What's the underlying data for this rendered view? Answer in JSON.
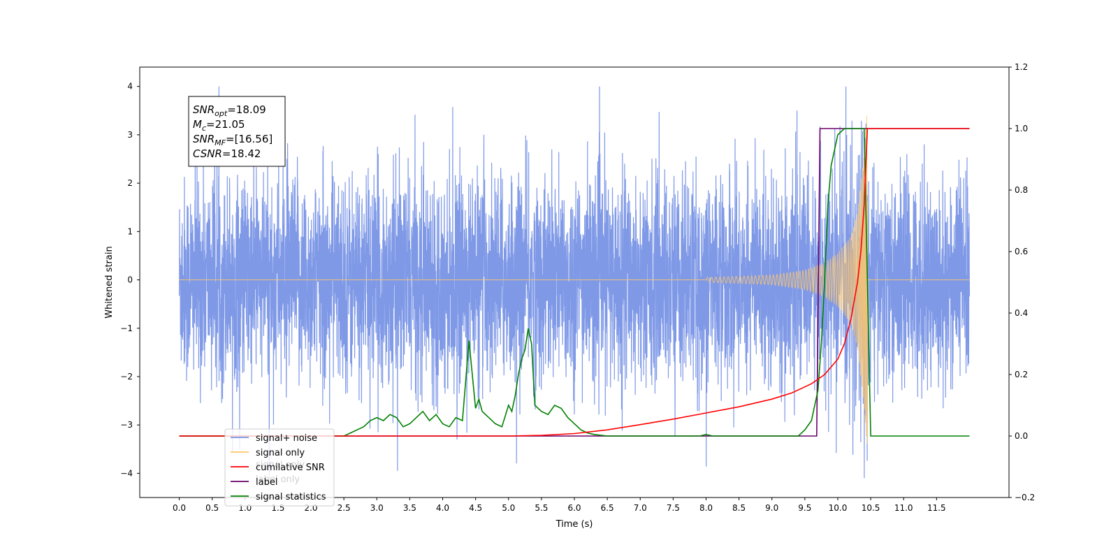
{
  "chart_data": {
    "type": "line",
    "xlabel": "Time (s)",
    "ylabel_left": "Whitened strain",
    "ylabel_right": "",
    "xlim": [
      -0.6,
      12.6
    ],
    "ylim_left": [
      -4.5,
      4.4
    ],
    "ylim_right": [
      -0.2,
      1.2
    ],
    "x_ticks": [
      0.0,
      0.5,
      1.0,
      1.5,
      2.0,
      2.5,
      3.0,
      3.5,
      4.0,
      4.5,
      5.0,
      5.5,
      6.0,
      6.5,
      7.0,
      7.5,
      8.0,
      8.5,
      9.0,
      9.5,
      10.0,
      10.5,
      11.0,
      11.5
    ],
    "x_tick_labels": [
      "0.0",
      "0.5",
      "1.0",
      "1.5",
      "2.0",
      "2.5",
      "3.0",
      "3.5",
      "4.0",
      "4.5",
      "5.0",
      "5.5",
      "6.0",
      "6.5",
      "7.0",
      "7.5",
      "8.0",
      "8.5",
      "9.0",
      "9.5",
      "10.0",
      "10.5",
      "11.0",
      "11.5"
    ],
    "y_ticks_left": [
      4,
      3,
      2,
      1,
      0,
      -1,
      -2,
      -3,
      -4
    ],
    "y_tick_labels_left": [
      "4",
      "3",
      "2",
      "1",
      "0",
      "−1",
      "−2",
      "−3",
      "−4"
    ],
    "y_ticks_right": [
      1.2,
      1.0,
      0.8,
      0.6,
      0.4,
      0.2,
      0.0,
      -0.2
    ],
    "y_tick_labels_right": [
      "1.2",
      "1.0",
      "0.8",
      "0.6",
      "0.4",
      "0.2",
      "0.0",
      "−0.2"
    ],
    "annotation_box": {
      "lines": [
        {
          "var": "SNR",
          "sub": "opt",
          "value": "=18.09"
        },
        {
          "var": "M",
          "sub": "c",
          "value": "=21.05"
        },
        {
          "var": "SNR",
          "sub": "MF",
          "value": "=[16.56]"
        },
        {
          "var": "CSNR",
          "sub": "",
          "value": "=18.42"
        }
      ]
    },
    "legend": {
      "placement": "lower-left",
      "entries": [
        {
          "label": "signal+ noise",
          "color": "#7893e6"
        },
        {
          "label": "signal only",
          "color": "#ffc76a"
        },
        {
          "label": "cumilative SNR",
          "color": "#ff0000"
        },
        {
          "label": "label",
          "color": "#6a006a"
        },
        {
          "label": "signal statistics",
          "color": "#008000"
        }
      ],
      "hidden_text": [
        "signal only",
        "label only"
      ]
    },
    "series": [
      {
        "name": "signal+ noise",
        "axis": "left",
        "color": "#7893e6",
        "t_range": [
          0.0,
          12.0
        ],
        "noise_sigma": 1.05,
        "peak_max": 4.0,
        "peak_min": -4.1
      },
      {
        "name": "signal only",
        "axis": "left",
        "color": "#ffc76a",
        "t_range": [
          0.0,
          12.0
        ],
        "envelope_t": [
          8.0,
          9.0,
          9.5,
          9.8,
          10.0,
          10.2,
          10.3,
          10.4,
          10.45
        ],
        "envelope_amp": [
          0.05,
          0.1,
          0.2,
          0.35,
          0.55,
          0.9,
          1.4,
          2.6,
          3.6
        ],
        "merger_t": 10.45
      },
      {
        "name": "cumilative SNR",
        "axis": "right",
        "color": "#ff0000",
        "x": [
          0.0,
          5.0,
          5.5,
          6.0,
          6.5,
          7.0,
          7.5,
          8.0,
          8.5,
          9.0,
          9.3,
          9.6,
          9.8,
          10.0,
          10.1,
          10.2,
          10.3,
          10.35,
          10.4,
          10.45,
          11.0,
          12.0
        ],
        "y": [
          0.0,
          0.0,
          0.002,
          0.008,
          0.02,
          0.037,
          0.055,
          0.075,
          0.095,
          0.12,
          0.14,
          0.17,
          0.2,
          0.25,
          0.3,
          0.38,
          0.5,
          0.6,
          0.75,
          1.0,
          1.0,
          1.0
        ]
      },
      {
        "name": "label",
        "axis": "right",
        "color": "#6a006a",
        "x": [
          0.0,
          9.68,
          9.73,
          10.42,
          10.45,
          12.0
        ],
        "y": [
          0.0,
          0.0,
          1.0,
          1.0,
          1.0,
          1.0
        ]
      },
      {
        "name": "signal statistics",
        "axis": "right",
        "color": "#008000",
        "x": [
          0.0,
          2.5,
          2.6,
          2.7,
          2.8,
          2.9,
          3.0,
          3.1,
          3.2,
          3.3,
          3.4,
          3.5,
          3.6,
          3.7,
          3.8,
          3.9,
          4.0,
          4.1,
          4.2,
          4.3,
          4.4,
          4.45,
          4.5,
          4.55,
          4.6,
          4.7,
          4.8,
          4.9,
          5.0,
          5.05,
          5.1,
          5.15,
          5.2,
          5.25,
          5.3,
          5.35,
          5.4,
          5.5,
          5.6,
          5.7,
          5.8,
          5.9,
          6.0,
          6.1,
          6.2,
          6.3,
          6.5,
          7.0,
          7.9,
          8.0,
          8.1,
          9.4,
          9.5,
          9.6,
          9.7,
          9.75,
          9.8,
          9.85,
          9.9,
          10.0,
          10.1,
          10.2,
          10.4,
          10.45,
          10.5,
          12.0
        ],
        "y": [
          0.0,
          0.0,
          0.01,
          0.02,
          0.03,
          0.05,
          0.06,
          0.05,
          0.07,
          0.06,
          0.03,
          0.04,
          0.06,
          0.08,
          0.05,
          0.07,
          0.04,
          0.03,
          0.06,
          0.05,
          0.31,
          0.2,
          0.09,
          0.12,
          0.08,
          0.06,
          0.04,
          0.03,
          0.1,
          0.08,
          0.13,
          0.2,
          0.25,
          0.28,
          0.35,
          0.3,
          0.1,
          0.08,
          0.07,
          0.1,
          0.09,
          0.06,
          0.04,
          0.02,
          0.01,
          0.005,
          0.0,
          0.0,
          0.0,
          0.005,
          0.0,
          0.0,
          0.02,
          0.05,
          0.15,
          0.3,
          0.5,
          0.75,
          0.88,
          0.98,
          1.0,
          1.0,
          1.0,
          0.5,
          0.0,
          0.0
        ]
      }
    ]
  }
}
